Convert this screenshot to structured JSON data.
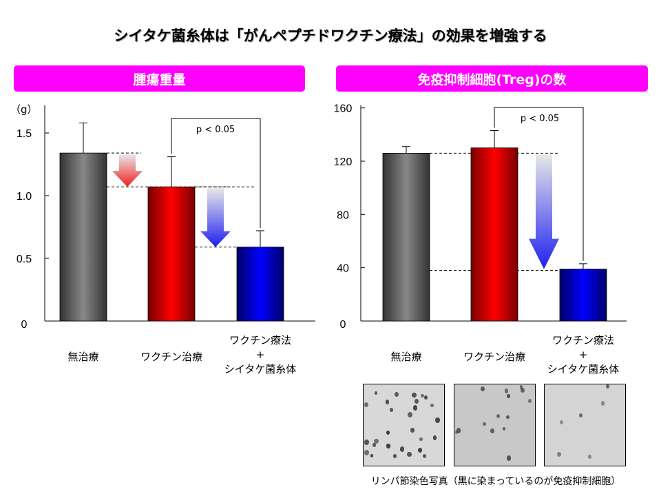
{
  "title": "シイタケ菌糸体は「がんペプチドワクチン療法」の効果を増強する",
  "caption": "リンパ節染色写真（黒に染まっているのが免疫抑制細胞）",
  "chart_data": [
    {
      "type": "bar",
      "title": "腫瘍重量",
      "ylabel": "（g）",
      "ylim": [
        0,
        1.7
      ],
      "yticks": [
        "0",
        "0.5",
        "1.0",
        "1.5"
      ],
      "ytick_values": [
        0,
        0.5,
        1.0,
        1.5
      ],
      "categories": [
        "無治療",
        "ワクチン治療",
        "ワクチン療法\n+\nシイタケ菌糸体"
      ],
      "values": [
        1.34,
        1.07,
        0.59
      ],
      "error_upper": [
        1.58,
        1.31,
        0.72
      ],
      "colors": [
        "#444444",
        "#ff0000",
        "#0000ff"
      ],
      "annotation": "p < 0.05",
      "significance_between": [
        1,
        2
      ],
      "arrows": [
        {
          "from": 0,
          "to": 1,
          "color": "#ff2020"
        },
        {
          "from": 1,
          "to": 2,
          "color": "#2020ff"
        }
      ]
    },
    {
      "type": "bar",
      "title": "免疫抑制細胞(Treg)の数",
      "ylabel": "",
      "ylim": [
        0,
        160
      ],
      "yticks": [
        "0",
        "40",
        "80",
        "120",
        "160"
      ],
      "ytick_values": [
        0,
        40,
        80,
        120,
        160
      ],
      "categories": [
        "無治療",
        "ワクチン治療",
        "ワクチン療法\n+\nシイタケ菌糸体"
      ],
      "values": [
        126,
        130,
        39
      ],
      "error_upper": [
        131,
        143,
        43
      ],
      "colors": [
        "#444444",
        "#ff0000",
        "#0000ff"
      ],
      "annotation": "p < 0.05",
      "significance_between": [
        1,
        2
      ],
      "arrows": [
        {
          "from": 0,
          "to": 2,
          "color": "#2020ff"
        }
      ]
    }
  ]
}
